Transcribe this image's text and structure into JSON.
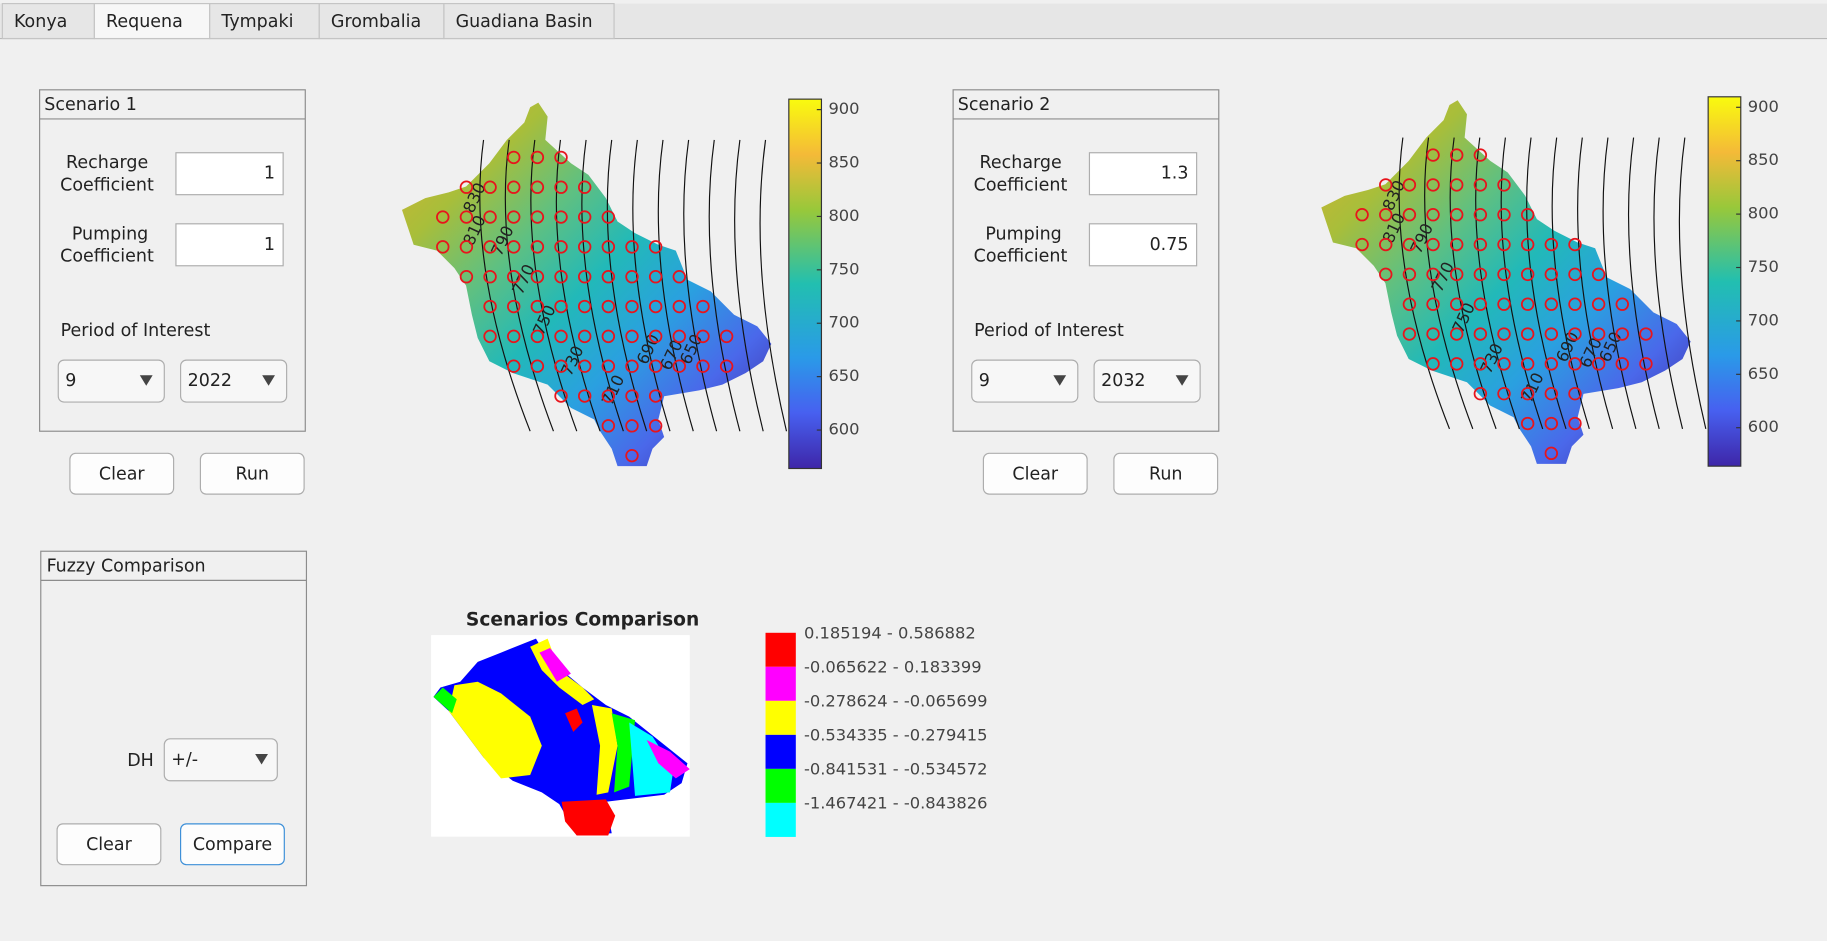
{
  "tabs": [
    "Konya",
    "Requena",
    "Tympaki",
    "Grombalia",
    "Guadiana Basin"
  ],
  "scenarios": [
    {
      "title": "Scenario 1",
      "recharge_label": "Recharge Coefficient",
      "recharge": "1",
      "pumping_label": "Pumping Coefficient",
      "pumping": "1",
      "period_label": "Period of Interest",
      "month": "9",
      "year": "2022",
      "clear": "Clear",
      "run": "Run"
    },
    {
      "title": "Scenario 2",
      "recharge_label": "Recharge Coefficient",
      "recharge": "1.3",
      "pumping_label": "Pumping Coefficient",
      "pumping": "0.75",
      "period_label": "Period of Interest",
      "month": "9",
      "year": "2032",
      "clear": "Clear",
      "run": "Run"
    }
  ],
  "map": {
    "colorbar_ticks": [
      900,
      850,
      800,
      750,
      700,
      650,
      600
    ],
    "contour_labels": [
      830,
      810,
      790,
      770,
      750,
      730,
      710,
      690,
      670,
      650
    ]
  },
  "fuzzy": {
    "title": "Fuzzy Comparison",
    "dh_label": "DH",
    "dh": "+/-",
    "clear": "Clear",
    "compare": "Compare"
  },
  "comparison": {
    "title": "Scenarios Comparison",
    "legend": [
      {
        "label": "0.185194 - 0.586882",
        "color": "#ff0000"
      },
      {
        "label": "-0.065622 - 0.183399",
        "color": "#ff00ff"
      },
      {
        "label": "-0.278624 - -0.065699",
        "color": "#ffff00"
      },
      {
        "label": "-0.534335 - -0.279415",
        "color": "#0000ff"
      },
      {
        "label": "-0.841531 - -0.534572",
        "color": "#00ff00"
      },
      {
        "label": "-1.467421 - -0.843826",
        "color": "#00ffff"
      }
    ]
  }
}
